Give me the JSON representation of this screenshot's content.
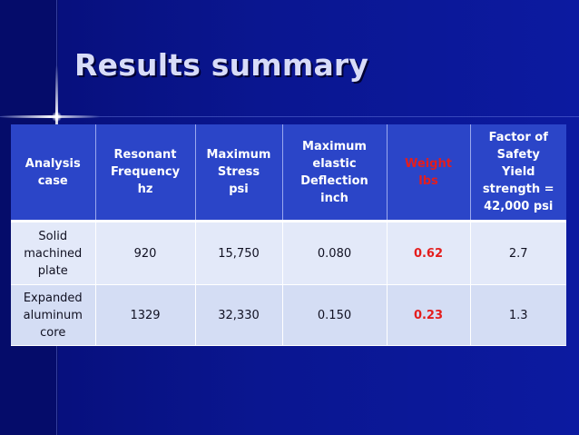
{
  "slide": {
    "title": "Results summary"
  },
  "table": {
    "headers": [
      "Analysis\ncase",
      "Resonant\nFrequency\nhz",
      "Maximum\nStress\npsi",
      "Maximum\nelastic\nDeflection\ninch",
      "Weight\nlbs",
      "Factor of\nSafety\nYield\nstrength =\n42,000 psi"
    ],
    "rows": [
      [
        "Solid\nmachined\nplate",
        "920",
        "15,750",
        "0.080",
        "0.62",
        "2.7"
      ],
      [
        "Expanded\naluminum\ncore",
        "1329",
        "32,330",
        "0.150",
        "0.23",
        "1.3"
      ]
    ],
    "highlight_color": "#e41d1d",
    "header_color": "#2b45c8"
  }
}
